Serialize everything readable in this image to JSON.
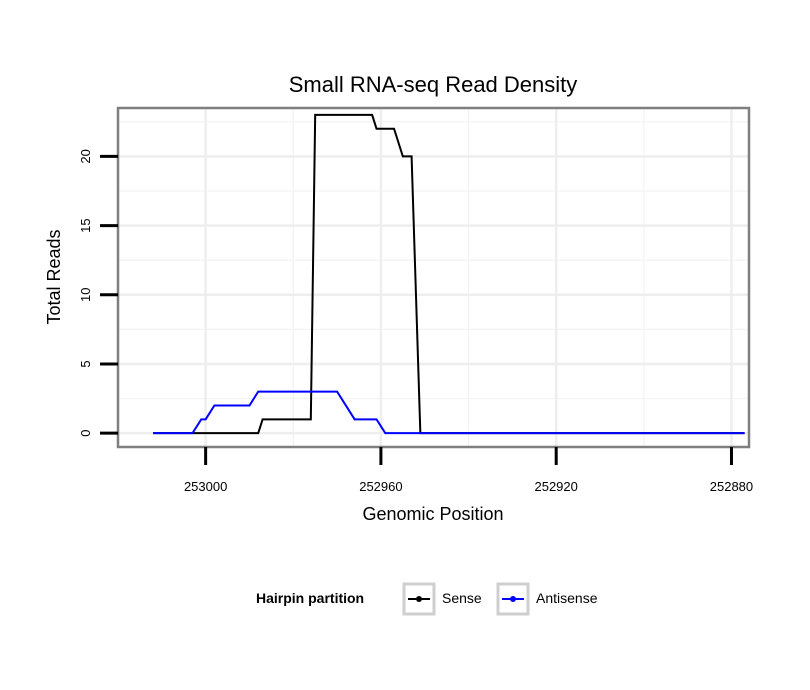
{
  "chart_data": {
    "type": "line",
    "title": "Small RNA-seq Read Density",
    "xlabel": "Genomic Position",
    "ylabel": "Total Reads",
    "xlim": [
      253020,
      252876
    ],
    "ylim": [
      -1,
      23.5
    ],
    "x_ticks": [
      253000,
      252960,
      252920,
      252880
    ],
    "x_tick_labels": [
      "253000",
      "252960",
      "252920",
      "252880"
    ],
    "y_ticks": [
      0,
      5,
      10,
      15,
      20
    ],
    "y_tick_labels": [
      "0",
      "5",
      "10",
      "15",
      "20"
    ],
    "grid": true,
    "legend": {
      "title": "Hairpin partition",
      "position": "bottom"
    },
    "series": [
      {
        "name": "Sense",
        "color": "#000000",
        "x": [
          253012,
          252988,
          252987,
          252982,
          252981,
          252976,
          252975,
          252962,
          252961,
          252958,
          252957,
          252955,
          252954,
          252953,
          252952,
          252951,
          252950,
          252877
        ],
        "y": [
          0,
          0,
          1,
          1,
          1,
          1,
          23,
          23,
          22,
          22,
          22,
          20,
          20,
          20,
          10,
          0,
          0,
          0
        ]
      },
      {
        "name": "Antisense",
        "color": "#0000ff",
        "x": [
          253012,
          253003,
          253001,
          253000,
          252998,
          252990,
          252988,
          252971,
          252970,
          252966,
          252965,
          252961,
          252959,
          252877
        ],
        "y": [
          0,
          0,
          1,
          1,
          2,
          2,
          3,
          3,
          3,
          1,
          1,
          1,
          0,
          0
        ]
      }
    ]
  }
}
